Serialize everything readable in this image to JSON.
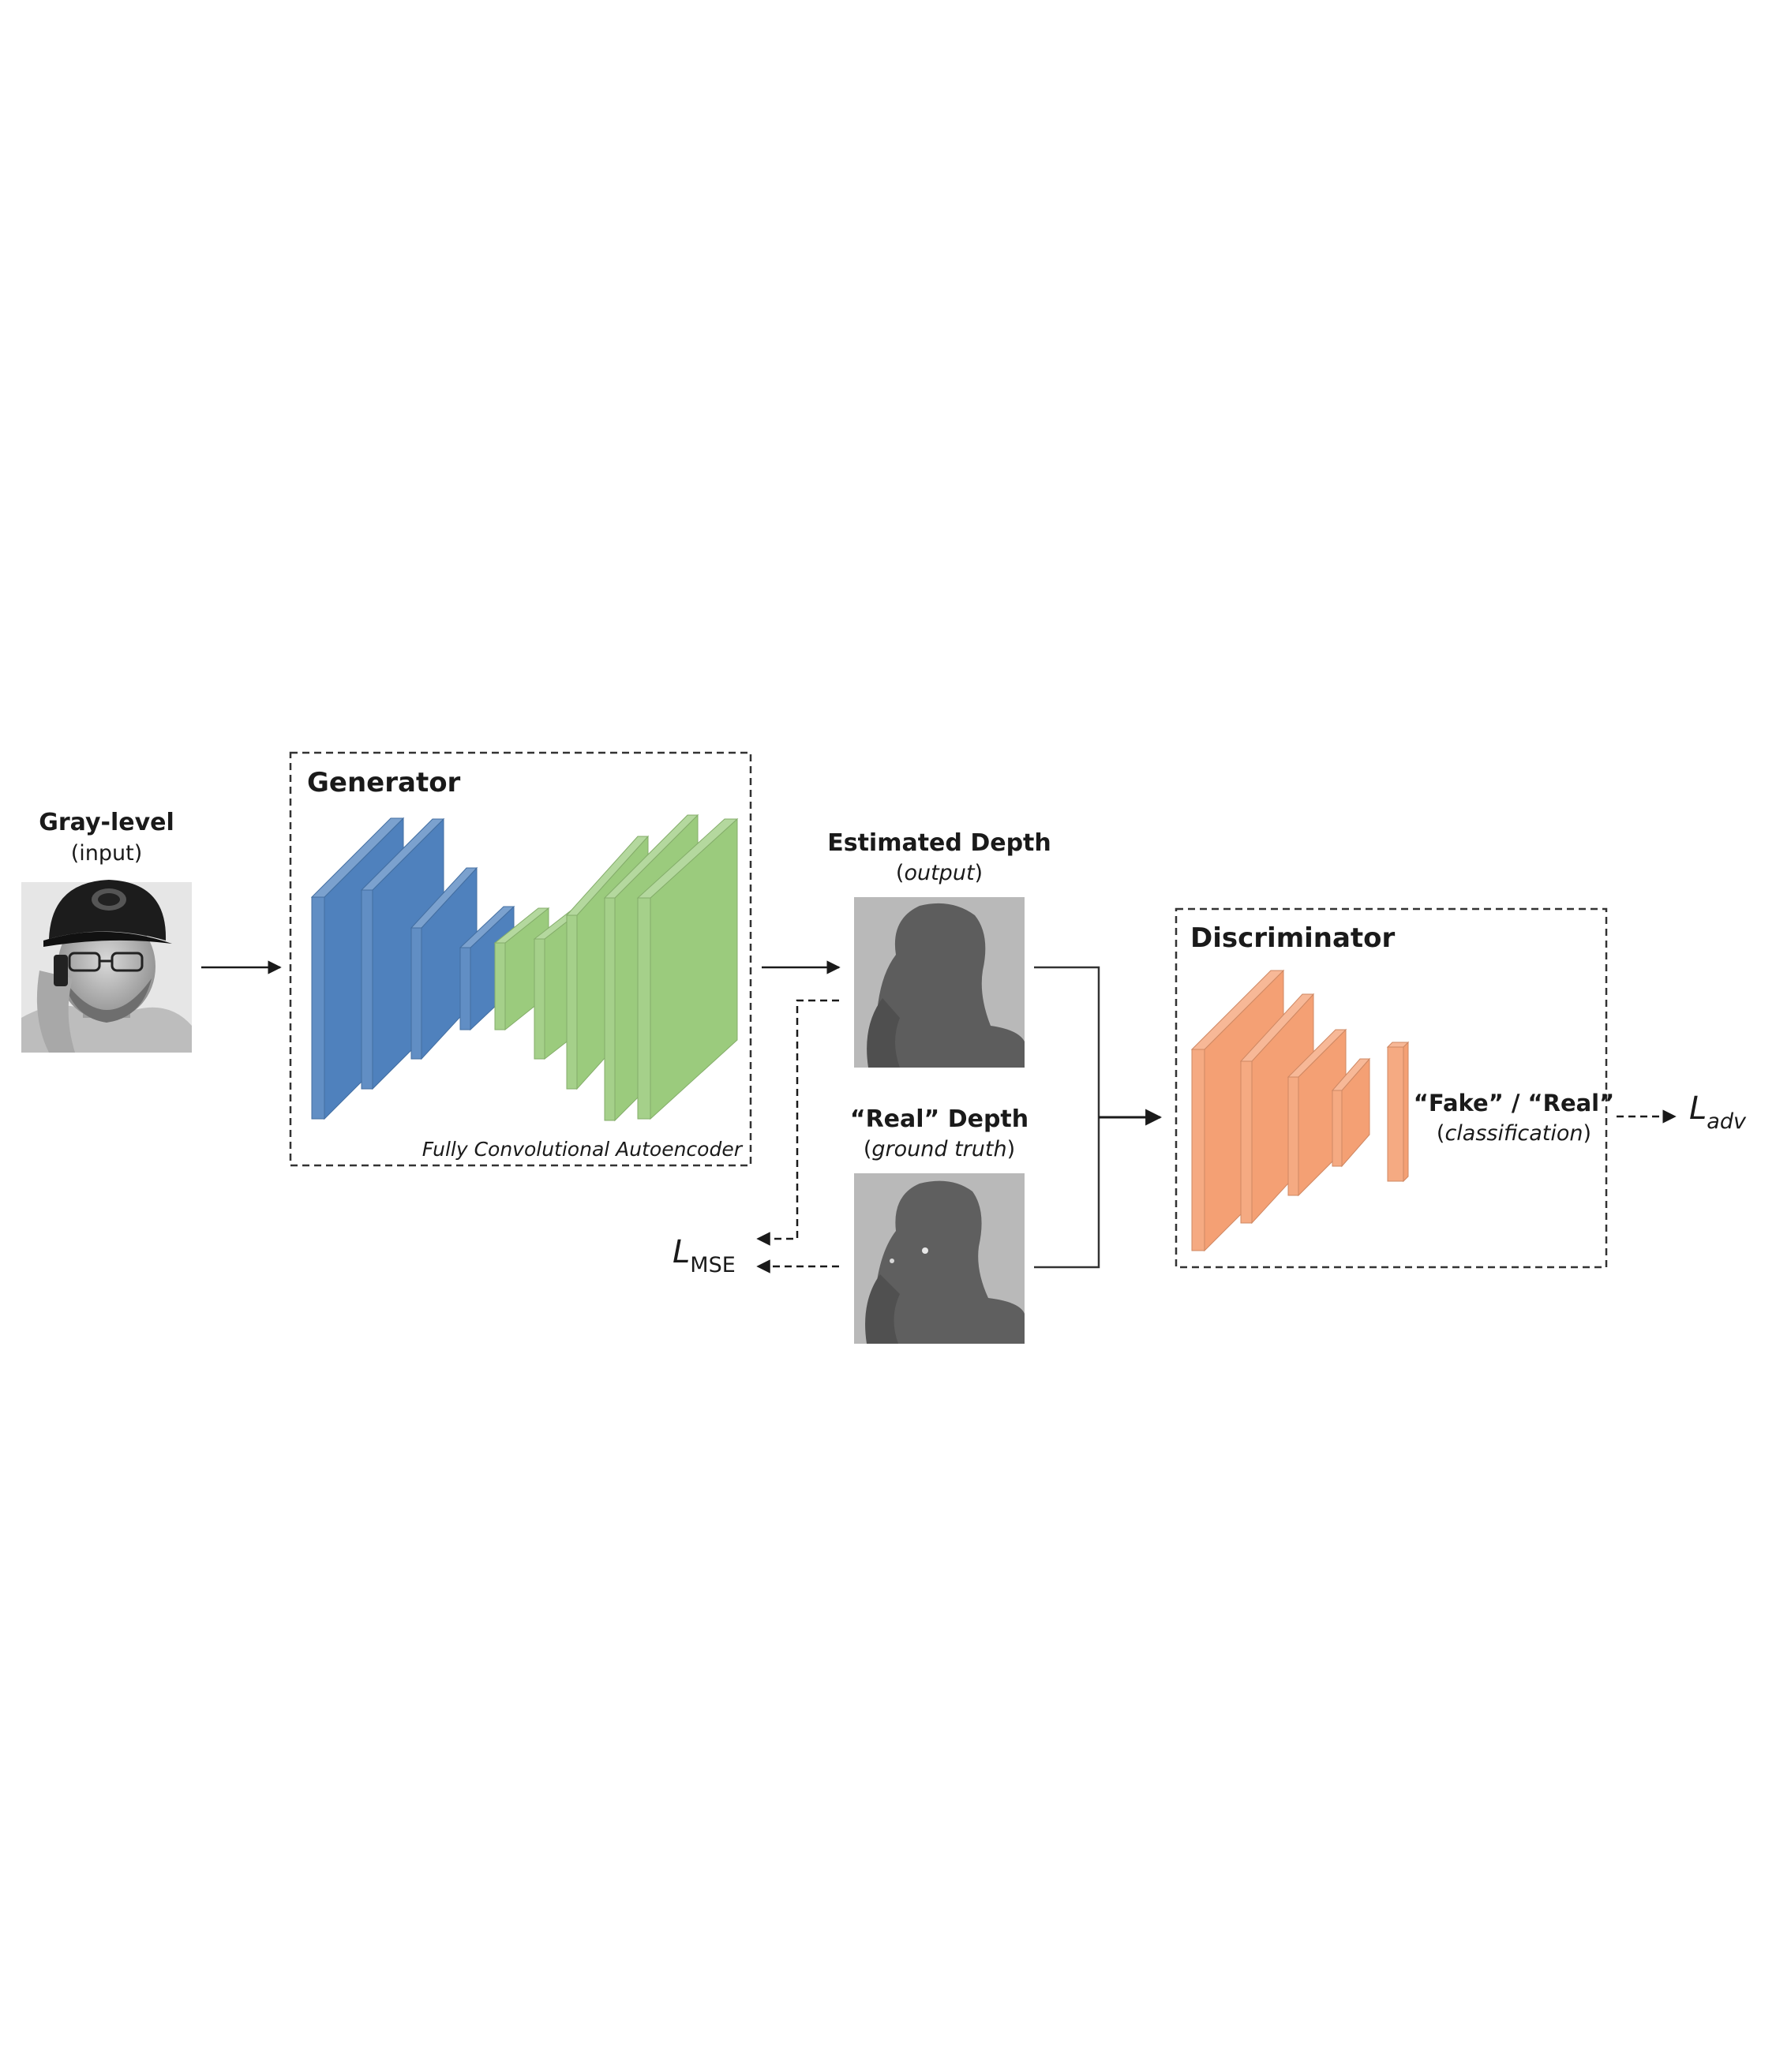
{
  "input": {
    "title": "Gray-level",
    "subtitle": "(input)"
  },
  "generator": {
    "title": "Generator",
    "caption": "Fully Convolutional Autoencoder"
  },
  "estimated": {
    "title": "Estimated Depth",
    "sub_open": "(",
    "sub_text": "output",
    "sub_close": ")"
  },
  "real": {
    "title": "“Real” Depth",
    "sub_open": "(",
    "sub_text": "ground truth",
    "sub_close": ")"
  },
  "discriminator": {
    "title": "Discriminator",
    "result": "“Fake” / “Real”",
    "sub_open": "(",
    "sub_text": "classification",
    "sub_close": ")"
  },
  "loss_mse": {
    "symbol": "L",
    "subscript": "MSE"
  },
  "loss_adv": {
    "symbol": "L",
    "subscript": "adv"
  },
  "colors": {
    "encoder": "#4f81bd",
    "decoder": "#9bcb7d",
    "discriminator": "#f4a074",
    "depth_bg": "#b9b9b9",
    "depth_fg": "#5d5d5d"
  }
}
